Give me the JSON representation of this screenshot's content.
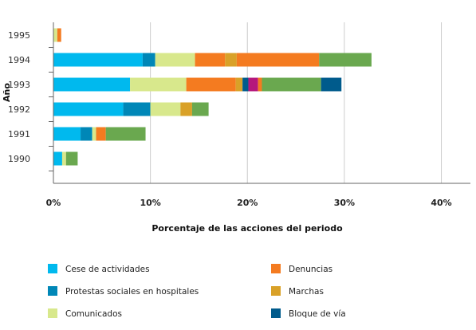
{
  "chart_data": {
    "type": "bar",
    "orientation": "horizontal",
    "stacked": true,
    "xlabel": "Porcentaje de las acciones del periodo",
    "ylabel": "Año",
    "xlim": [
      0,
      43
    ],
    "xticks": [
      0,
      10,
      20,
      30,
      40
    ],
    "xtick_labels": [
      "0%",
      "10%",
      "20%",
      "30%",
      "40%"
    ],
    "categories": [
      "1995",
      "1994",
      "1993",
      "1992",
      "1991",
      "1990"
    ],
    "grid": "vertical",
    "legend_position": "bottom",
    "series": [
      {
        "name": "Cese de actividades",
        "color": "#00b9ee",
        "values": [
          0,
          9.2,
          7.9,
          7.2,
          2.8,
          0.9
        ]
      },
      {
        "name": "Protestas sociales en hospitales",
        "color": "#0087b7",
        "values": [
          0,
          1.3,
          0,
          2.8,
          1.2,
          0
        ]
      },
      {
        "name": "Comunicados",
        "color": "#d8e88c",
        "values": [
          0.4,
          4.1,
          5.8,
          3.1,
          0.4,
          0.4
        ]
      },
      {
        "name": "Denuncias",
        "color": "#f47b20",
        "values": [
          0.4,
          3.1,
          5.1,
          0,
          1.0,
          0
        ]
      },
      {
        "name": "Marchas",
        "color": "#d9a128",
        "values": [
          0,
          1.2,
          0.7,
          1.2,
          0,
          0
        ]
      },
      {
        "name": "",
        "color": "#f47b20",
        "values": [
          0,
          8.5,
          0,
          0,
          0,
          0
        ]
      },
      {
        "name": "Bloque de vía",
        "color": "#005b8c",
        "values": [
          0,
          0,
          0.6,
          0,
          0,
          0
        ]
      },
      {
        "name": "",
        "color": "#b5177c",
        "values": [
          0,
          0,
          1.0,
          0,
          0,
          0
        ]
      },
      {
        "name": "",
        "color": "#f47b20",
        "values": [
          0,
          0,
          0.4,
          0,
          0,
          0
        ]
      },
      {
        "name": "",
        "color": "#6aa84f",
        "values": [
          0,
          5.4,
          6.1,
          1.7,
          4.1,
          1.2
        ]
      },
      {
        "name": "",
        "color": "#005b8c",
        "values": [
          0,
          0,
          2.1,
          0,
          0,
          0
        ]
      }
    ],
    "legend": [
      {
        "label": "Cese de actividades",
        "color": "#00b9ee"
      },
      {
        "label": "Protestas sociales en hospitales",
        "color": "#0087b7"
      },
      {
        "label": "Comunicados",
        "color": "#d8e88c"
      },
      {
        "label": "Denuncias",
        "color": "#f47b20"
      },
      {
        "label": "Marchas",
        "color": "#d9a128"
      },
      {
        "label": "Bloque de vía",
        "color": "#005b8c"
      }
    ]
  }
}
